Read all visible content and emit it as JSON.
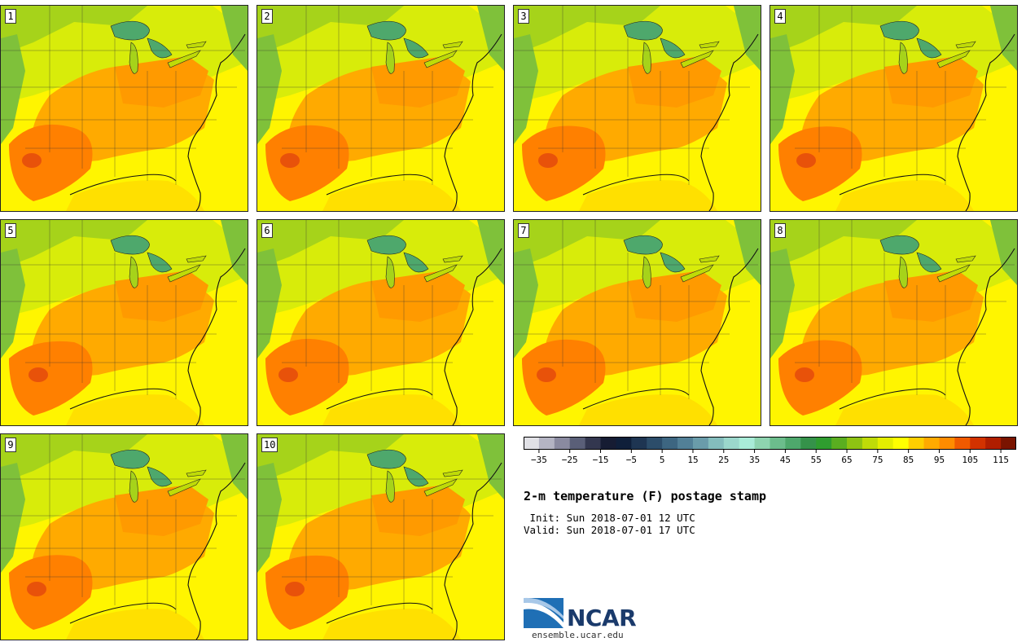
{
  "panels": [
    {
      "label": "1"
    },
    {
      "label": "2"
    },
    {
      "label": "3"
    },
    {
      "label": "4"
    },
    {
      "label": "5"
    },
    {
      "label": "6"
    },
    {
      "label": "7"
    },
    {
      "label": "8"
    },
    {
      "label": "9"
    },
    {
      "label": "10"
    }
  ],
  "colorbar": {
    "bounds": [
      -40,
      -35,
      -30,
      -25,
      -20,
      -15,
      -10,
      -5,
      0,
      5,
      10,
      15,
      20,
      25,
      30,
      35,
      40,
      45,
      50,
      55,
      60,
      65,
      70,
      75,
      80,
      85,
      90,
      95,
      100,
      105,
      110,
      115,
      120
    ],
    "tick_labels": [
      "−35",
      "−25",
      "−15",
      "−5",
      "5",
      "15",
      "25",
      "35",
      "45",
      "55",
      "65",
      "75",
      "85",
      "95",
      "105",
      "115"
    ],
    "tick_values": [
      -35,
      -25,
      -15,
      -5,
      5,
      15,
      25,
      35,
      45,
      55,
      65,
      75,
      85,
      95,
      105,
      115
    ],
    "colors": [
      "#e1e1e6",
      "#b4b4c3",
      "#8a8aa0",
      "#5a5f78",
      "#33374f",
      "#161c33",
      "#0f1f3a",
      "#1e3552",
      "#2c4d6a",
      "#3d6681",
      "#528097",
      "#6a9caa",
      "#84bdbd",
      "#9bd7cc",
      "#a9ecd8",
      "#8ed4b0",
      "#6cbd8c",
      "#4ea86c",
      "#35924a",
      "#2f9d2f",
      "#5aae20",
      "#8ec312",
      "#bfdb08",
      "#e4ee00",
      "#ffff00",
      "#ffcf00",
      "#ffaa00",
      "#ff8c00",
      "#f05a00",
      "#d23200",
      "#b01e00",
      "#7a1400"
    ]
  },
  "title": "2-m temperature (F) postage stamp",
  "init": " Init: Sun 2018-07-01 12 UTC",
  "valid": "Valid: Sun 2018-07-01 17 UTC",
  "logo": {
    "text": "NCAR",
    "url": "ensemble.ucar.edu"
  }
}
